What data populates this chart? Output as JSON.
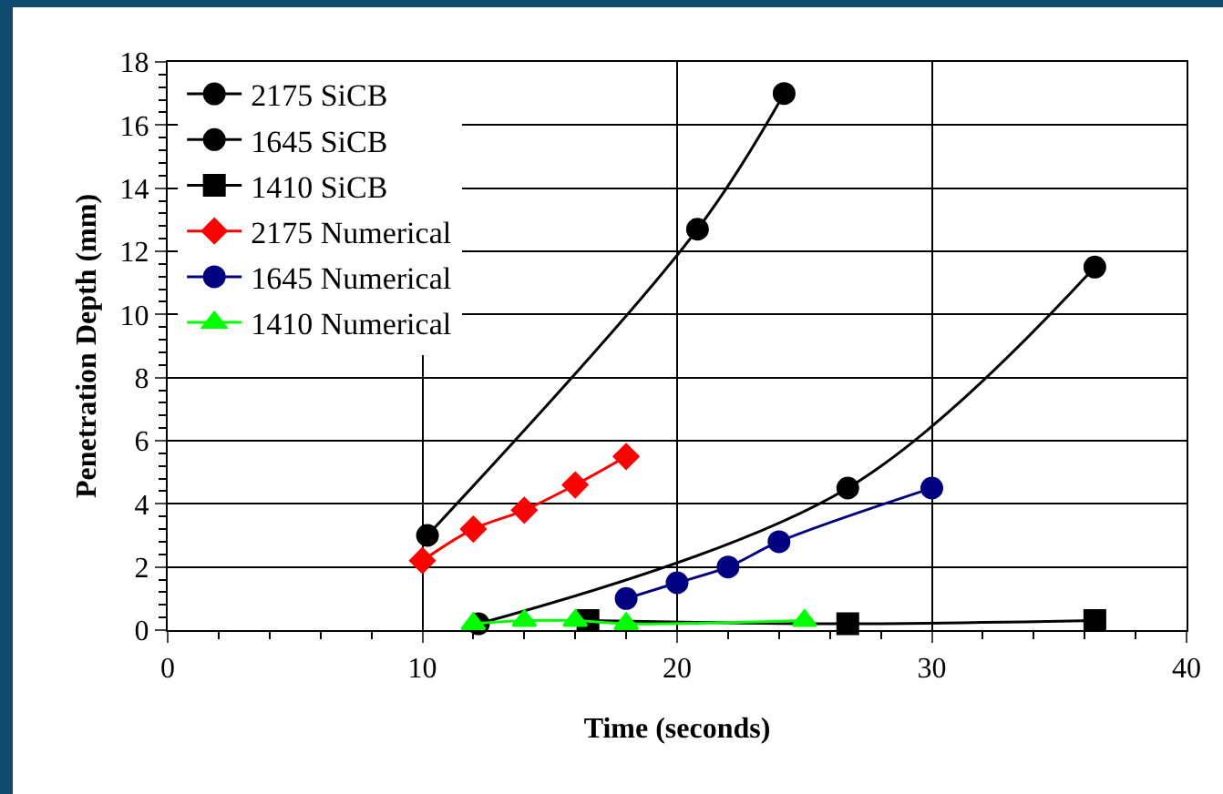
{
  "chart_data": {
    "type": "line",
    "xlabel": "Time (seconds)",
    "ylabel": "Penetration Depth (mm)",
    "xlim": [
      0,
      40
    ],
    "xticks": [
      0,
      10,
      20,
      30,
      40
    ],
    "ylim": [
      0,
      18
    ],
    "yticks": [
      0,
      2,
      4,
      6,
      8,
      10,
      12,
      14,
      16,
      18
    ],
    "grid": true,
    "legend": "top left",
    "line_style": "solid",
    "series": [
      {
        "name": "2175 SiCB",
        "color": "#000000",
        "marker": "circle",
        "x": [
          10.2,
          20.8,
          24.2
        ],
        "values": [
          3.0,
          12.7,
          17.0
        ]
      },
      {
        "name": "1645 SiCB",
        "color": "#000000",
        "marker": "circle",
        "x": [
          12.2,
          26.7,
          36.4
        ],
        "values": [
          0.2,
          4.5,
          11.5
        ]
      },
      {
        "name": "1410 SiCB",
        "color": "#000000",
        "marker": "square",
        "x": [
          16.5,
          26.7,
          36.4
        ],
        "values": [
          0.3,
          0.2,
          0.3
        ]
      },
      {
        "name": "2175 Numerical",
        "color": "#ff0000",
        "marker": "diamond",
        "x": [
          10,
          12,
          14,
          16,
          18
        ],
        "values": [
          2.2,
          3.2,
          3.8,
          4.6,
          5.5
        ]
      },
      {
        "name": "1645 Numerical",
        "color": "#000080",
        "marker": "circle",
        "x": [
          18,
          20,
          22,
          24,
          30
        ],
        "values": [
          1.0,
          1.5,
          2.0,
          2.8,
          4.5
        ]
      },
      {
        "name": "1410 Numerical",
        "color": "#00ff00",
        "marker": "triangle",
        "x": [
          12,
          14,
          16,
          18,
          25
        ],
        "values": [
          0.2,
          0.3,
          0.3,
          0.2,
          0.3
        ]
      }
    ]
  }
}
